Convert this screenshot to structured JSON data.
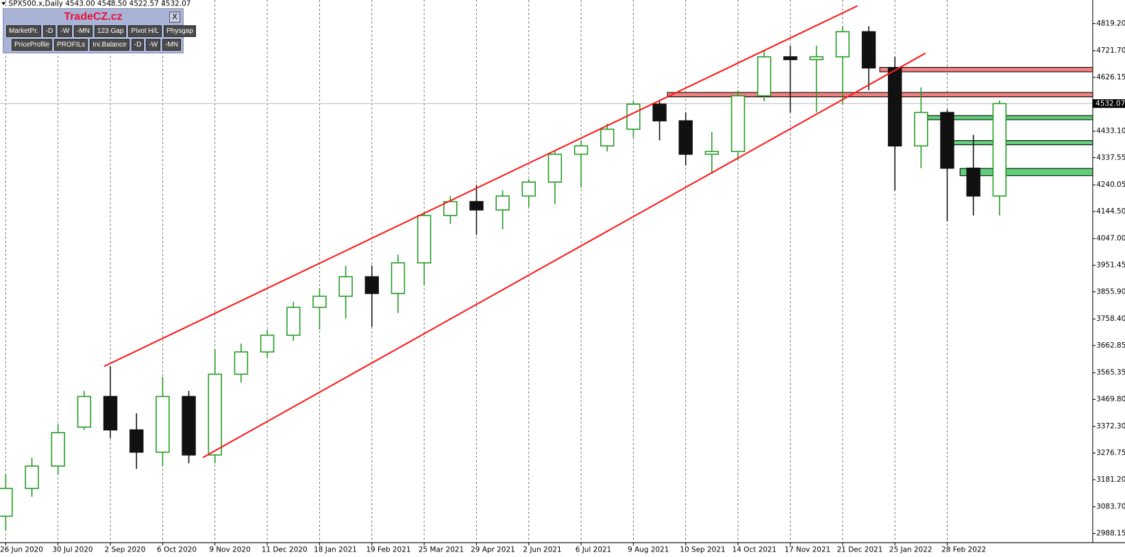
{
  "chart_data": {
    "type": "candlestick",
    "header": "SPX500.x,Daily  4543.00 4548.50 4522.57 4532.07",
    "categories": [
      "26 Jun 2020",
      null,
      "30 Jul 2020",
      null,
      "2 Sep 2020",
      null,
      "6 Oct 2020",
      null,
      "9 Nov 2020",
      null,
      "11 Dec 2020",
      null,
      "18 Jan 2021",
      null,
      "19 Feb 2021",
      null,
      "25 Mar 2021",
      null,
      "29 Apr 2021",
      null,
      "2 Jun 2021",
      null,
      "6 Jul 2021",
      null,
      "9 Aug 2021",
      null,
      "10 Sep 2021",
      null,
      "14 Oct 2021",
      null,
      "17 Nov 2021",
      null,
      "21 Dec 2021",
      null,
      "25 Jan 2022",
      null,
      "28 Feb 2022",
      null,
      null,
      null,
      null,
      null
    ],
    "open": [
      3050,
      3150,
      3230,
      3370,
      3480,
      3360,
      3280,
      3480,
      3270,
      3560,
      3640,
      3700,
      3800,
      3840,
      3910,
      3850,
      3960,
      4130,
      4180,
      4150,
      4200,
      4250,
      4350,
      4380,
      4440,
      4530,
      4470,
      4350,
      4360,
      4560,
      4700,
      4690,
      4700,
      4790,
      4660,
      4380,
      4500,
      4300,
      4200,
      null,
      null,
      null
    ],
    "high": [
      3200,
      3260,
      3380,
      3500,
      3588,
      3420,
      3550,
      3500,
      3650,
      3670,
      3720,
      3820,
      3870,
      3950,
      3950,
      3990,
      4140,
      4200,
      4240,
      4220,
      4260,
      4360,
      4400,
      4460,
      4540,
      4545,
      4500,
      4430,
      4580,
      4720,
      4740,
      4740,
      4810,
      4810,
      4700,
      4590,
      4510,
      4420,
      4543,
      null,
      null,
      null
    ],
    "low": [
      3000,
      3120,
      3200,
      3360,
      3330,
      3220,
      3230,
      3240,
      3240,
      3530,
      3620,
      3680,
      3720,
      3760,
      3730,
      3780,
      3880,
      4100,
      4060,
      4080,
      4160,
      4170,
      4230,
      4360,
      4410,
      4400,
      4310,
      4280,
      4330,
      4540,
      4500,
      4500,
      4530,
      4580,
      4220,
      4300,
      4110,
      4130,
      4130,
      null,
      null,
      null
    ],
    "close": [
      3150,
      3230,
      3350,
      3480,
      3360,
      3280,
      3480,
      3270,
      3560,
      3640,
      3700,
      3800,
      3840,
      3910,
      3850,
      3960,
      4130,
      4180,
      4150,
      4200,
      4250,
      4350,
      4380,
      4440,
      4530,
      4470,
      4350,
      4360,
      4560,
      4700,
      4690,
      4700,
      4790,
      4660,
      4380,
      4500,
      4300,
      4200,
      4532.07,
      null,
      null,
      null
    ],
    "color_up": "#1e9a1e",
    "color_down": "#111111",
    "last_price": 4532.07,
    "ylim": [
      2955,
      4904
    ],
    "yticks": [
      {
        "value": 4819.2,
        "label": "4819.20"
      },
      {
        "value": 4721.7,
        "label": "4721.70"
      },
      {
        "value": 4626.15,
        "label": "4626.15"
      },
      {
        "value": 4433.1,
        "label": "4433.10"
      },
      {
        "value": 4337.55,
        "label": "4337.55"
      },
      {
        "value": 4240.05,
        "label": "4240.05"
      },
      {
        "value": 4144.5,
        "label": "4144.50"
      },
      {
        "value": 4047,
        "label": "4047.00"
      },
      {
        "value": 3951.45,
        "label": "3951.45"
      },
      {
        "value": 3855.9,
        "label": "3855.90"
      },
      {
        "value": 3758.4,
        "label": "3758.40"
      },
      {
        "value": 3662.85,
        "label": "3662.85"
      },
      {
        "value": 3565.35,
        "label": "3565.35"
      },
      {
        "value": 3469.8,
        "label": "3469.80"
      },
      {
        "value": 3372.3,
        "label": "3372.30"
      },
      {
        "value": 3276.75,
        "label": "3276.75"
      },
      {
        "value": 3181.2,
        "label": "3181.20"
      },
      {
        "value": 3083.7,
        "label": "3083.70"
      },
      {
        "value": 2988.15,
        "label": "2988.15"
      }
    ],
    "trendlines": [
      {
        "color": "#ff1a1a",
        "x": [
          3.76,
          32.57
        ],
        "y": [
          3588,
          4883
        ]
      },
      {
        "color": "#ff1a1a",
        "x": [
          7.54,
          35.17
        ],
        "y": [
          3261,
          4713
        ]
      }
    ],
    "zones": [
      {
        "color": "#f08080",
        "x": 33.42,
        "y": [
          4646,
          4662
        ]
      },
      {
        "color": "#f08080",
        "x": 25.3,
        "y": [
          4556,
          4572
        ]
      },
      {
        "color": "#5fcf7a",
        "x": 35.2,
        "y": [
          4474,
          4489
        ]
      },
      {
        "color": "#5fcf7a",
        "x": 35.83,
        "y": [
          4384,
          4399
        ]
      },
      {
        "color": "#5fcf7a",
        "x": 36.49,
        "y": [
          4273,
          4299
        ]
      }
    ]
  },
  "panel": {
    "title": "TradeCZ.cz",
    "close": "X",
    "row1": [
      "MarketPr.",
      "-D",
      "-W",
      "-MN",
      "123 Gap",
      "Pivot H/L",
      "Physgap"
    ],
    "row2": [
      "PriceProfile",
      "PROFILs",
      "Ini.Balance",
      "-D",
      "-W",
      "-MN"
    ]
  }
}
